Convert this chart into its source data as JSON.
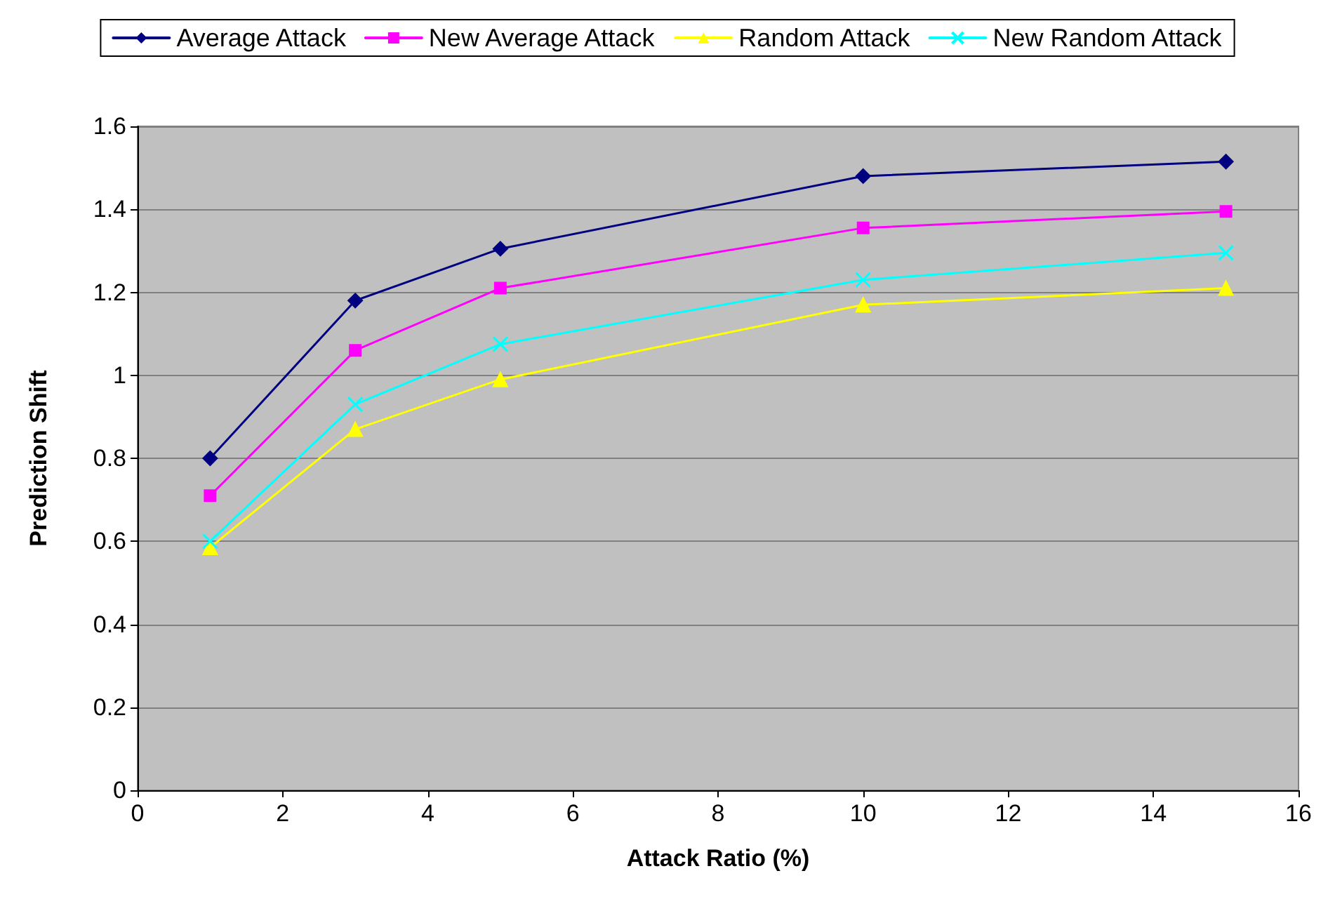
{
  "chart_data": {
    "type": "line",
    "xlabel": "Attack Ratio (%)",
    "ylabel": "Prediction Shift",
    "x": [
      1,
      3,
      5,
      10,
      15
    ],
    "series": [
      {
        "name": "Average Attack",
        "color": "#000080",
        "marker": "diamond",
        "values": [
          0.8,
          1.18,
          1.305,
          1.48,
          1.515
        ]
      },
      {
        "name": "New Average Attack",
        "color": "#ff00ff",
        "marker": "square",
        "values": [
          0.71,
          1.06,
          1.21,
          1.355,
          1.395
        ]
      },
      {
        "name": "Random Attack",
        "color": "#ffff00",
        "marker": "triangle",
        "values": [
          0.585,
          0.87,
          0.99,
          1.17,
          1.21
        ]
      },
      {
        "name": "New Random Attack",
        "color": "#00ffff",
        "marker": "cross",
        "values": [
          0.6,
          0.93,
          1.075,
          1.23,
          1.295
        ]
      }
    ],
    "xlim": [
      0,
      16
    ],
    "xticks": [
      0,
      2,
      4,
      6,
      8,
      10,
      12,
      14,
      16
    ],
    "ylim": [
      0,
      1.6
    ],
    "yticks": [
      0,
      0.2,
      0.4,
      0.6,
      0.8,
      1,
      1.2,
      1.4,
      1.6
    ],
    "grid": "y",
    "legend": "top",
    "line_style": "solid"
  }
}
